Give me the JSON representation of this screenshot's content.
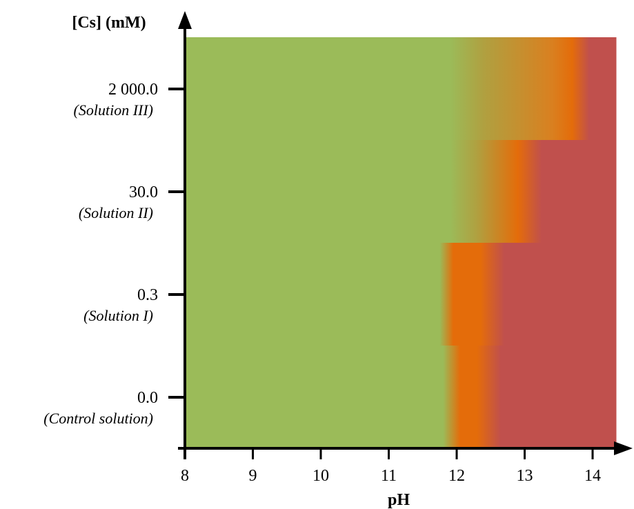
{
  "chart_data": {
    "type": "heatmap",
    "title": "",
    "xlabel": "pH",
    "ylabel": "[Cs] (mM)",
    "xlim": [
      8,
      14.5
    ],
    "x_ticks": [
      "8",
      "9",
      "10",
      "11",
      "12",
      "13",
      "14"
    ],
    "grid": false,
    "legend": "none",
    "rows": [
      {
        "value_label": "2 000.0",
        "name": "(Solution III)",
        "ph_max": 14.35,
        "stops": [
          {
            "ph": 11.9,
            "color": "#9bbb59"
          },
          {
            "ph": 12.4,
            "color": "#b0a040"
          },
          {
            "ph": 13.4,
            "color": "#d98020"
          },
          {
            "ph": 13.7,
            "color": "#e46c0a"
          },
          {
            "ph": 13.95,
            "color": "#c0504d"
          }
        ]
      },
      {
        "value_label": "30.0",
        "name": "(Solution II)",
        "ph_max": 14.35,
        "stops": [
          {
            "ph": 11.9,
            "color": "#9bbb59"
          },
          {
            "ph": 12.3,
            "color": "#b0a040"
          },
          {
            "ph": 12.9,
            "color": "#e46c0a"
          },
          {
            "ph": 13.25,
            "color": "#c0504d"
          }
        ]
      },
      {
        "value_label": "0.3",
        "name": "(Solution I)",
        "ph_max": 14.35,
        "stops": [
          {
            "ph": 11.75,
            "color": "#9bbb59"
          },
          {
            "ph": 11.95,
            "color": "#e46c0a"
          },
          {
            "ph": 12.35,
            "color": "#e46c0a"
          },
          {
            "ph": 12.7,
            "color": "#c0504d"
          }
        ]
      },
      {
        "value_label": "0.0",
        "name": "(Control solution)",
        "ph_max": 14.35,
        "stops": [
          {
            "ph": 11.8,
            "color": "#9bbb59"
          },
          {
            "ph": 12.05,
            "color": "#e46c0a"
          },
          {
            "ph": 12.3,
            "color": "#e46c0a"
          },
          {
            "ph": 12.65,
            "color": "#c0504d"
          }
        ]
      }
    ],
    "colors": {
      "low": "#9bbb59",
      "mid": "#e46c0a",
      "high": "#c0504d"
    }
  }
}
